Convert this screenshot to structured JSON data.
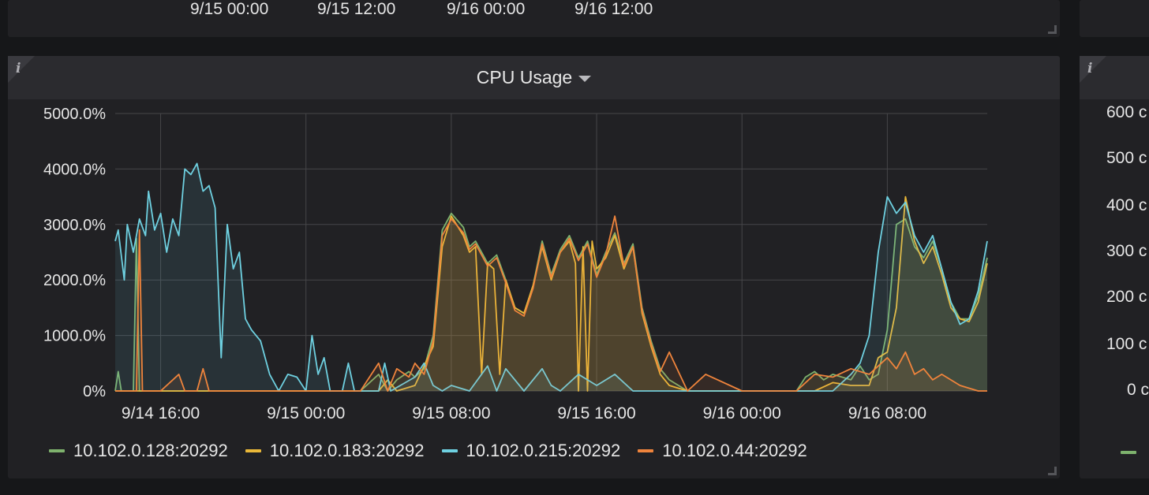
{
  "top_panel": {
    "tick_labels": [
      "9/15 00:00",
      "9/15 12:00",
      "9/16 00:00",
      "9/16 12:00"
    ]
  },
  "panel": {
    "title": "CPU Usage",
    "info_icon": "info-icon",
    "menu_icon": "caret-down-icon"
  },
  "right_panel": {
    "tick_labels": [
      "600 c",
      "500 c",
      "400 c",
      "300 c",
      "200 c",
      "100 c",
      "0 c"
    ]
  },
  "colors": {
    "background": "#161719",
    "panel": "#212124",
    "grid": "#464649"
  },
  "chart_data": {
    "type": "area",
    "title": "CPU Usage",
    "xlabel": "",
    "ylabel": "",
    "x_range": [
      "9/14 13:30",
      "9/16 13:30"
    ],
    "ylim": [
      0,
      5000
    ],
    "y_ticks": [
      "0%",
      "1000.0%",
      "2000.0%",
      "3000.0%",
      "4000.0%",
      "5000.0%"
    ],
    "x_ticks": [
      "9/14 16:00",
      "9/15 00:00",
      "9/15 08:00",
      "9/15 16:00",
      "9/16 00:00",
      "9/16 08:00"
    ],
    "grid": true,
    "legend_position": "bottom",
    "series": [
      {
        "name": "10.102.0.128:20292",
        "color": "#7eb26d",
        "points": [
          [
            "9/14 13:30",
            0
          ],
          [
            "9/14 13:40",
            350
          ],
          [
            "9/14 13:50",
            0
          ],
          [
            "9/14 14:30",
            0
          ],
          [
            "9/14 14:40",
            2750
          ],
          [
            "9/14 14:50",
            0
          ],
          [
            "9/14 17:00",
            0
          ],
          [
            "9/14 19:00",
            0
          ],
          [
            "9/14 22:00",
            0
          ],
          [
            "9/15 03:00",
            0
          ],
          [
            "9/15 04:00",
            300
          ],
          [
            "9/15 04:30",
            0
          ],
          [
            "9/15 05:00",
            200
          ],
          [
            "9/15 05:40",
            350
          ],
          [
            "9/15 06:00",
            250
          ],
          [
            "9/15 06:30",
            400
          ],
          [
            "9/15 07:00",
            1000
          ],
          [
            "9/15 07:30",
            2900
          ],
          [
            "9/15 08:00",
            3200
          ],
          [
            "9/15 08:40",
            2950
          ],
          [
            "9/15 09:00",
            2600
          ],
          [
            "9/15 09:20",
            2700
          ],
          [
            "9/15 09:40",
            2500
          ],
          [
            "9/15 10:00",
            2300
          ],
          [
            "9/15 10:30",
            2450
          ],
          [
            "9/15 11:00",
            2000
          ],
          [
            "9/15 11:30",
            1500
          ],
          [
            "9/15 12:00",
            1400
          ],
          [
            "9/15 12:30",
            1900
          ],
          [
            "9/15 13:00",
            2700
          ],
          [
            "9/15 13:30",
            2100
          ],
          [
            "9/15 14:00",
            2550
          ],
          [
            "9/15 14:30",
            2800
          ],
          [
            "9/15 15:00",
            2400
          ],
          [
            "9/15 15:30",
            2700
          ],
          [
            "9/15 16:00",
            2100
          ],
          [
            "9/15 16:30",
            2500
          ],
          [
            "9/15 17:00",
            2850
          ],
          [
            "9/15 17:30",
            2300
          ],
          [
            "9/15 18:00",
            2650
          ],
          [
            "9/15 18:30",
            1500
          ],
          [
            "9/15 19:00",
            900
          ],
          [
            "9/15 19:30",
            400
          ],
          [
            "9/15 20:00",
            200
          ],
          [
            "9/15 21:00",
            0
          ],
          [
            "9/16 00:00",
            0
          ],
          [
            "9/16 03:00",
            0
          ],
          [
            "9/16 03:30",
            250
          ],
          [
            "9/16 04:00",
            350
          ],
          [
            "9/16 04:30",
            200
          ],
          [
            "9/16 05:00",
            300
          ],
          [
            "9/16 06:00",
            200
          ],
          [
            "9/16 06:30",
            450
          ],
          [
            "9/16 07:00",
            200
          ],
          [
            "9/16 07:30",
            300
          ],
          [
            "9/16 08:00",
            1100
          ],
          [
            "9/16 08:30",
            3000
          ],
          [
            "9/16 09:00",
            3100
          ],
          [
            "9/16 09:30",
            2600
          ],
          [
            "9/16 10:00",
            2400
          ],
          [
            "9/16 10:30",
            2700
          ],
          [
            "9/16 11:00",
            2200
          ],
          [
            "9/16 11:30",
            1600
          ],
          [
            "9/16 12:00",
            1300
          ],
          [
            "9/16 12:30",
            1300
          ],
          [
            "9/16 13:00",
            1700
          ],
          [
            "9/16 13:30",
            2400
          ]
        ]
      },
      {
        "name": "10.102.0.183:20292",
        "color": "#eab839",
        "points": [
          [
            "9/14 13:30",
            0
          ],
          [
            "9/14 14:30",
            0
          ],
          [
            "9/14 15:00",
            0
          ],
          [
            "9/14 22:00",
            0
          ],
          [
            "9/15 04:00",
            0
          ],
          [
            "9/15 04:30",
            200
          ],
          [
            "9/15 05:00",
            0
          ],
          [
            "9/15 06:00",
            100
          ],
          [
            "9/15 07:00",
            800
          ],
          [
            "9/15 07:30",
            2600
          ],
          [
            "9/15 08:00",
            3150
          ],
          [
            "9/15 08:40",
            2800
          ],
          [
            "9/15 09:00",
            2500
          ],
          [
            "9/15 09:20",
            2600
          ],
          [
            "9/15 09:40",
            300
          ],
          [
            "9/15 10:00",
            2300
          ],
          [
            "9/15 10:20",
            2200
          ],
          [
            "9/15 10:40",
            300
          ],
          [
            "9/15 11:00",
            2000
          ],
          [
            "9/15 11:30",
            1500
          ],
          [
            "9/15 12:00",
            1400
          ],
          [
            "9/15 12:30",
            1900
          ],
          [
            "9/15 13:00",
            2600
          ],
          [
            "9/15 13:30",
            2000
          ],
          [
            "9/15 14:00",
            2500
          ],
          [
            "9/15 14:30",
            2700
          ],
          [
            "9/15 14:50",
            2300
          ],
          [
            "9/15 15:00",
            0
          ],
          [
            "9/15 15:15",
            2600
          ],
          [
            "9/15 15:30",
            0
          ],
          [
            "9/15 15:45",
            2700
          ],
          [
            "9/15 16:00",
            2200
          ],
          [
            "9/15 16:30",
            2400
          ],
          [
            "9/15 17:00",
            2800
          ],
          [
            "9/15 17:30",
            2200
          ],
          [
            "9/15 18:00",
            2600
          ],
          [
            "9/15 18:30",
            1400
          ],
          [
            "9/15 19:00",
            800
          ],
          [
            "9/15 19:30",
            300
          ],
          [
            "9/15 20:00",
            100
          ],
          [
            "9/15 21:00",
            0
          ],
          [
            "9/16 00:00",
            0
          ],
          [
            "9/16 04:00",
            0
          ],
          [
            "9/16 05:00",
            150
          ],
          [
            "9/16 06:00",
            100
          ],
          [
            "9/16 07:00",
            100
          ],
          [
            "9/16 07:30",
            600
          ],
          [
            "9/16 08:00",
            700
          ],
          [
            "9/16 08:30",
            1500
          ],
          [
            "9/16 09:00",
            3500
          ],
          [
            "9/16 09:30",
            2700
          ],
          [
            "9/16 10:00",
            2300
          ],
          [
            "9/16 10:30",
            2600
          ],
          [
            "9/16 11:00",
            2100
          ],
          [
            "9/16 11:30",
            1500
          ],
          [
            "9/16 12:00",
            1300
          ],
          [
            "9/16 12:30",
            1250
          ],
          [
            "9/16 13:00",
            1600
          ],
          [
            "9/16 13:30",
            2300
          ]
        ]
      },
      {
        "name": "10.102.0.215:20292",
        "color": "#6ed0e0",
        "points": [
          [
            "9/14 13:30",
            2700
          ],
          [
            "9/14 13:40",
            2900
          ],
          [
            "9/14 14:00",
            2000
          ],
          [
            "9/14 14:10",
            3000
          ],
          [
            "9/14 14:30",
            2500
          ],
          [
            "9/14 14:50",
            3100
          ],
          [
            "9/14 15:10",
            2800
          ],
          [
            "9/14 15:20",
            3600
          ],
          [
            "9/14 15:40",
            2900
          ],
          [
            "9/14 16:00",
            3200
          ],
          [
            "9/14 16:20",
            2500
          ],
          [
            "9/14 16:40",
            3100
          ],
          [
            "9/14 17:00",
            2800
          ],
          [
            "9/14 17:20",
            4000
          ],
          [
            "9/14 17:40",
            3900
          ],
          [
            "9/14 18:00",
            4100
          ],
          [
            "9/14 18:20",
            3600
          ],
          [
            "9/14 18:40",
            3700
          ],
          [
            "9/14 19:00",
            3300
          ],
          [
            "9/14 19:20",
            600
          ],
          [
            "9/14 19:40",
            3000
          ],
          [
            "9/14 20:00",
            2200
          ],
          [
            "9/14 20:20",
            2500
          ],
          [
            "9/14 20:40",
            1300
          ],
          [
            "9/14 21:00",
            1100
          ],
          [
            "9/14 21:30",
            900
          ],
          [
            "9/14 22:00",
            300
          ],
          [
            "9/14 22:30",
            0
          ],
          [
            "9/14 23:00",
            300
          ],
          [
            "9/14 23:30",
            250
          ],
          [
            "9/15 00:00",
            0
          ],
          [
            "9/15 00:20",
            1000
          ],
          [
            "9/15 00:40",
            300
          ],
          [
            "9/15 01:00",
            600
          ],
          [
            "9/15 01:20",
            0
          ],
          [
            "9/15 02:00",
            0
          ],
          [
            "9/15 02:20",
            500
          ],
          [
            "9/15 02:40",
            0
          ],
          [
            "9/15 04:00",
            0
          ],
          [
            "9/15 04:20",
            500
          ],
          [
            "9/15 04:40",
            0
          ],
          [
            "9/15 06:00",
            250
          ],
          [
            "9/15 06:30",
            500
          ],
          [
            "9/15 07:00",
            100
          ],
          [
            "9/15 07:30",
            0
          ],
          [
            "9/15 08:00",
            100
          ],
          [
            "9/15 09:00",
            0
          ],
          [
            "9/15 10:00",
            450
          ],
          [
            "9/15 10:30",
            0
          ],
          [
            "9/15 11:00",
            400
          ],
          [
            "9/15 12:00",
            0
          ],
          [
            "9/15 13:00",
            400
          ],
          [
            "9/15 13:30",
            100
          ],
          [
            "9/15 14:00",
            0
          ],
          [
            "9/15 15:00",
            300
          ],
          [
            "9/15 16:00",
            100
          ],
          [
            "9/15 17:00",
            300
          ],
          [
            "9/15 18:00",
            0
          ],
          [
            "9/16 00:00",
            0
          ],
          [
            "9/16 02:00",
            0
          ],
          [
            "9/16 05:00",
            0
          ],
          [
            "9/16 06:00",
            300
          ],
          [
            "9/16 06:30",
            500
          ],
          [
            "9/16 07:00",
            1000
          ],
          [
            "9/16 07:30",
            2500
          ],
          [
            "9/16 08:00",
            3500
          ],
          [
            "9/16 08:30",
            3200
          ],
          [
            "9/16 09:00",
            3400
          ],
          [
            "9/16 09:30",
            2800
          ],
          [
            "9/16 10:00",
            2500
          ],
          [
            "9/16 10:30",
            2800
          ],
          [
            "9/16 11:00",
            2200
          ],
          [
            "9/16 11:30",
            1600
          ],
          [
            "9/16 12:00",
            1200
          ],
          [
            "9/16 12:30",
            1300
          ],
          [
            "9/16 13:00",
            1800
          ],
          [
            "9/16 13:30",
            2700
          ]
        ]
      },
      {
        "name": "10.102.0.44:20292",
        "color": "#ef843c",
        "points": [
          [
            "9/14 13:30",
            0
          ],
          [
            "9/14 14:40",
            0
          ],
          [
            "9/14 14:50",
            2900
          ],
          [
            "9/14 15:00",
            0
          ],
          [
            "9/14 16:00",
            0
          ],
          [
            "9/14 17:00",
            300
          ],
          [
            "9/14 17:20",
            0
          ],
          [
            "9/14 18:00",
            0
          ],
          [
            "9/14 18:20",
            400
          ],
          [
            "9/14 18:40",
            0
          ],
          [
            "9/14 20:00",
            0
          ],
          [
            "9/15 03:00",
            0
          ],
          [
            "9/15 04:00",
            500
          ],
          [
            "9/15 04:30",
            0
          ],
          [
            "9/15 05:00",
            400
          ],
          [
            "9/15 05:40",
            250
          ],
          [
            "9/15 06:00",
            500
          ],
          [
            "9/15 06:30",
            300
          ],
          [
            "9/15 07:00",
            900
          ],
          [
            "9/15 07:30",
            2800
          ],
          [
            "9/15 08:00",
            3100
          ],
          [
            "9/15 08:40",
            2850
          ],
          [
            "9/15 09:00",
            2550
          ],
          [
            "9/15 09:20",
            2650
          ],
          [
            "9/15 09:40",
            2450
          ],
          [
            "9/15 10:00",
            2250
          ],
          [
            "9/15 10:30",
            2400
          ],
          [
            "9/15 11:00",
            1950
          ],
          [
            "9/15 11:30",
            1450
          ],
          [
            "9/15 12:00",
            1350
          ],
          [
            "9/15 12:30",
            1850
          ],
          [
            "9/15 13:00",
            2650
          ],
          [
            "9/15 13:30",
            2050
          ],
          [
            "9/15 14:00",
            2500
          ],
          [
            "9/15 14:30",
            2750
          ],
          [
            "9/15 15:00",
            2350
          ],
          [
            "9/15 15:30",
            2650
          ],
          [
            "9/15 16:00",
            2050
          ],
          [
            "9/15 16:30",
            2450
          ],
          [
            "9/15 17:00",
            3150
          ],
          [
            "9/15 17:30",
            2250
          ],
          [
            "9/15 18:00",
            2600
          ],
          [
            "9/15 18:30",
            1450
          ],
          [
            "9/15 19:00",
            850
          ],
          [
            "9/15 19:30",
            350
          ],
          [
            "9/15 20:00",
            700
          ],
          [
            "9/15 21:00",
            0
          ],
          [
            "9/15 22:00",
            300
          ],
          [
            "9/16 00:00",
            0
          ],
          [
            "9/16 03:00",
            0
          ],
          [
            "9/16 04:00",
            300
          ],
          [
            "9/16 05:00",
            250
          ],
          [
            "9/16 06:00",
            400
          ],
          [
            "9/16 07:00",
            300
          ],
          [
            "9/16 08:00",
            600
          ],
          [
            "9/16 08:30",
            400
          ],
          [
            "9/16 09:00",
            700
          ],
          [
            "9/16 09:30",
            300
          ],
          [
            "9/16 10:00",
            400
          ],
          [
            "9/16 10:30",
            200
          ],
          [
            "9/16 11:00",
            300
          ],
          [
            "9/16 12:00",
            100
          ],
          [
            "9/16 13:00",
            0
          ],
          [
            "9/16 13:30",
            0
          ]
        ]
      }
    ]
  }
}
